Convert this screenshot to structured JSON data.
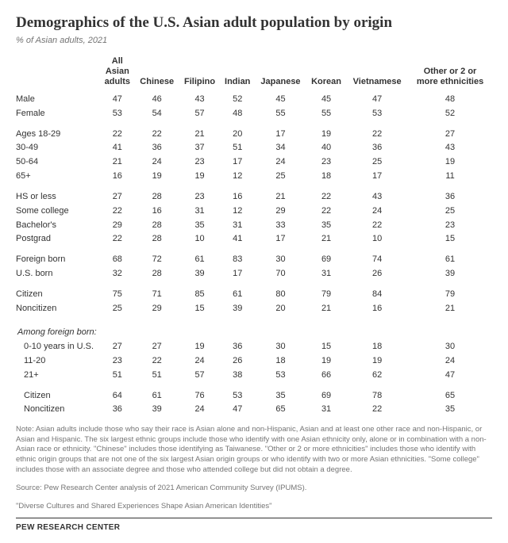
{
  "title": "Demographics of the U.S. Asian adult population by origin",
  "subtitle": "% of Asian adults, 2021",
  "columns": [
    "All Asian adults",
    "Chinese",
    "Filipino",
    "Indian",
    "Japanese",
    "Korean",
    "Vietnamese",
    "Other or 2 or more ethnicities"
  ],
  "groups": [
    {
      "rows": [
        {
          "label": "Male",
          "vals": [
            47,
            46,
            43,
            52,
            45,
            45,
            47,
            48
          ]
        },
        {
          "label": "Female",
          "vals": [
            53,
            54,
            57,
            48,
            55,
            55,
            53,
            52
          ]
        }
      ]
    },
    {
      "rows": [
        {
          "label": "Ages 18-29",
          "vals": [
            22,
            22,
            21,
            20,
            17,
            19,
            22,
            27
          ]
        },
        {
          "label": "30-49",
          "vals": [
            41,
            36,
            37,
            51,
            34,
            40,
            36,
            43
          ]
        },
        {
          "label": "50-64",
          "vals": [
            21,
            24,
            23,
            17,
            24,
            23,
            25,
            19
          ]
        },
        {
          "label": "65+",
          "vals": [
            16,
            19,
            19,
            12,
            25,
            18,
            17,
            11
          ]
        }
      ]
    },
    {
      "rows": [
        {
          "label": "HS or less",
          "vals": [
            27,
            28,
            23,
            16,
            21,
            22,
            43,
            36
          ]
        },
        {
          "label": "Some college",
          "vals": [
            22,
            16,
            31,
            12,
            29,
            22,
            24,
            25
          ]
        },
        {
          "label": "Bachelor's",
          "vals": [
            29,
            28,
            35,
            31,
            33,
            35,
            22,
            23
          ]
        },
        {
          "label": "Postgrad",
          "vals": [
            22,
            28,
            10,
            41,
            17,
            21,
            10,
            15
          ]
        }
      ]
    },
    {
      "rows": [
        {
          "label": "Foreign born",
          "vals": [
            68,
            72,
            61,
            83,
            30,
            69,
            74,
            61
          ]
        },
        {
          "label": "U.S. born",
          "vals": [
            32,
            28,
            39,
            17,
            70,
            31,
            26,
            39
          ]
        }
      ]
    },
    {
      "rows": [
        {
          "label": "Citizen",
          "vals": [
            75,
            71,
            85,
            61,
            80,
            79,
            84,
            79
          ]
        },
        {
          "label": "Noncitizen",
          "vals": [
            25,
            29,
            15,
            39,
            20,
            21,
            16,
            21
          ]
        }
      ]
    },
    {
      "section": "Among foreign born:",
      "rows": [
        {
          "label": "0-10 years in U.S.",
          "indent": true,
          "vals": [
            27,
            27,
            19,
            36,
            30,
            15,
            18,
            30
          ]
        },
        {
          "label": "11-20",
          "indent": true,
          "vals": [
            23,
            22,
            24,
            26,
            18,
            19,
            19,
            24
          ]
        },
        {
          "label": "21+",
          "indent": true,
          "vals": [
            51,
            51,
            57,
            38,
            53,
            66,
            62,
            47
          ]
        }
      ]
    },
    {
      "rows": [
        {
          "label": "Citizen",
          "indent": true,
          "vals": [
            64,
            61,
            76,
            53,
            35,
            69,
            78,
            65
          ]
        },
        {
          "label": "Noncitizen",
          "indent": true,
          "vals": [
            36,
            39,
            24,
            47,
            65,
            31,
            22,
            35
          ]
        }
      ]
    }
  ],
  "note": "Note: Asian adults include those who say their race is Asian alone and non-Hispanic, Asian and at least one other race and non-Hispanic, or Asian and Hispanic. The six largest ethnic groups include those who identify with one Asian ethnicity only, alone or in combination with a non-Asian race or ethnicity. \"Chinese\" includes those identifying as Taiwanese. \"Other or 2 or more ethnicities\" includes those who identify with ethnic origin groups that are not one of the six largest Asian origin groups or who identify with two or more Asian ethnicities. \"Some college\" includes those with an associate degree and those who attended college but did not obtain a degree.",
  "source": "Source: Pew Research Center analysis of 2021 American Community Survey (IPUMS).",
  "report": "\"Diverse Cultures and Shared Experiences Shape Asian American Identities\"",
  "footer": "PEW RESEARCH CENTER",
  "style": {
    "col_width_label": 106,
    "background": "#ffffff",
    "text_color": "#333333",
    "muted_color": "#747474",
    "title_fontsize": 19,
    "body_fontsize": 11,
    "note_fontsize": 9.5
  }
}
